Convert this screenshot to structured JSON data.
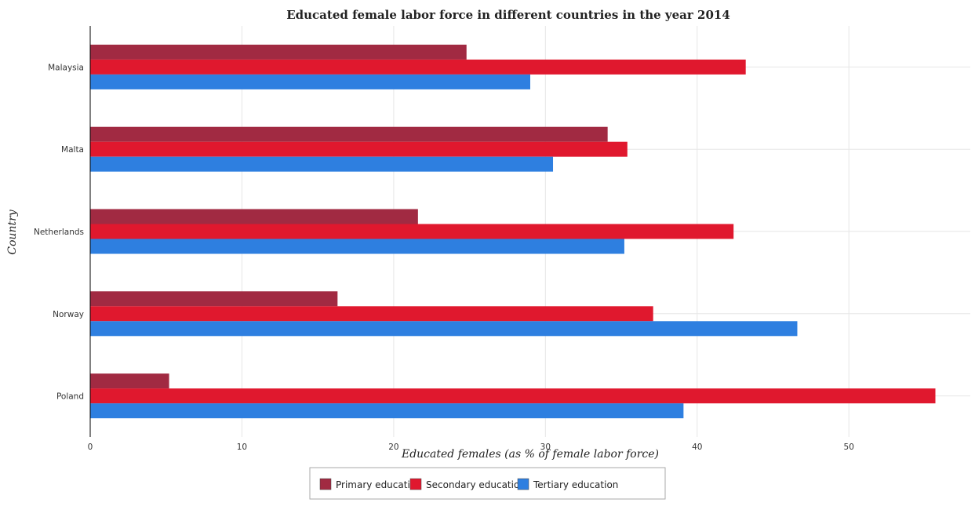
{
  "chart_data": {
    "type": "bar",
    "orientation": "horizontal",
    "title": "Educated female labor force in different countries in the year 2014",
    "xlabel": "Educated females (as % of female labor force)",
    "ylabel": "Country",
    "xlim": [
      0,
      58
    ],
    "xticks": [
      0,
      10,
      20,
      30,
      40,
      50
    ],
    "categories": [
      "Malaysia",
      "Malta",
      "Netherlands",
      "Norway",
      "Poland"
    ],
    "series": [
      {
        "name": "Primary education",
        "color": "#a12a42",
        "values": [
          24.8,
          34.1,
          21.6,
          16.3,
          5.2
        ]
      },
      {
        "name": "Secondary education",
        "color": "#e0182e",
        "values": [
          43.2,
          35.4,
          42.4,
          37.1,
          55.7
        ]
      },
      {
        "name": "Tertiary education",
        "color": "#2e7fe0",
        "values": [
          29.0,
          30.5,
          35.2,
          46.6,
          39.1
        ]
      }
    ],
    "grid": true,
    "legend_position": "bottom"
  }
}
